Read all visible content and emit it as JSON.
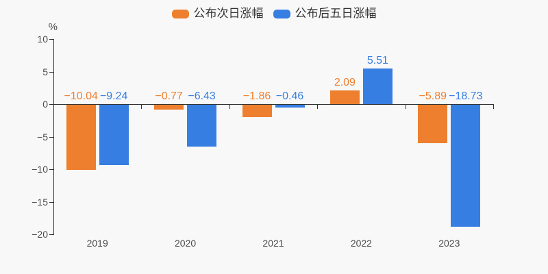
{
  "background": "#f8f8f8",
  "axis": {
    "line_color": "#333333",
    "tick_label_color": "#4a4a4a",
    "unit_label": "%"
  },
  "legend": {
    "items": [
      {
        "label": "公布次日涨幅",
        "color": "#ee7f2e"
      },
      {
        "label": "公布后五日涨幅",
        "color": "#377ee2"
      }
    ]
  },
  "chart_data": {
    "type": "bar",
    "title": "",
    "categories": [
      "2019",
      "2020",
      "2021",
      "2022",
      "2023"
    ],
    "series": [
      {
        "name": "公布次日涨幅",
        "color": "#ee7f2e",
        "values": [
          -10.04,
          -0.77,
          -1.86,
          2.09,
          -5.89
        ]
      },
      {
        "name": "公布后五日涨幅",
        "color": "#377ee2",
        "values": [
          -9.24,
          -6.43,
          -0.46,
          5.51,
          -18.73
        ]
      }
    ],
    "value_labels": [
      "−10.04",
      "−0.77",
      "−1.86",
      "2.09",
      "−5.89",
      "−9.24",
      "−6.43",
      "−0.46",
      "5.51",
      "−18.73"
    ],
    "xlabel": "",
    "ylabel": "%",
    "ylim": [
      -20,
      10
    ],
    "yticks": [
      10,
      5,
      0,
      -5,
      -10,
      -15,
      -20
    ],
    "grid": false,
    "legend_position": "top"
  }
}
